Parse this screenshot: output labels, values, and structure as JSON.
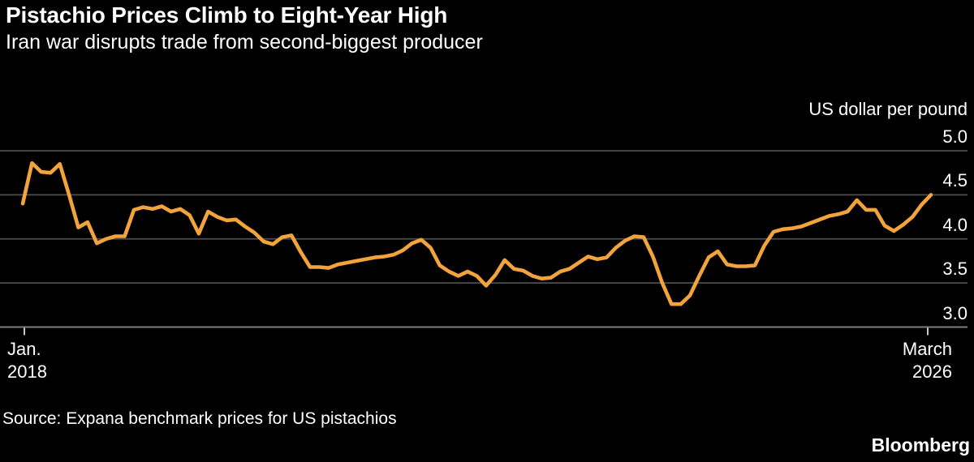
{
  "header": {
    "title": "Pistachio Prices Climb to Eight-Year High",
    "subtitle": "Iran war disrupts trade from second-biggest producer"
  },
  "footer": {
    "source": "Source: Expana benchmark prices for US pistachios",
    "brand": "Bloomberg"
  },
  "chart_data": {
    "type": "line",
    "title": "Pistachio Prices Climb to Eight-Year High",
    "subtitle": "Iran war disrupts trade from second-biggest producer",
    "series_name": "US pistachio benchmark price",
    "unit_label": "US dollar per pound",
    "x_start_label": [
      "Jan.",
      "2018"
    ],
    "x_end_label": [
      "March",
      "2026"
    ],
    "x_range": [
      "2018-01",
      "2026-03"
    ],
    "x_frequency": "monthly",
    "ylim": [
      3.0,
      5.0
    ],
    "y_ticks": [
      5.0,
      4.5,
      4.0,
      3.5,
      3.0
    ],
    "grid": "horizontal",
    "legend": "none",
    "values": [
      4.4,
      4.86,
      4.76,
      4.75,
      4.85,
      4.5,
      4.13,
      4.19,
      3.95,
      4.0,
      4.03,
      4.03,
      4.33,
      4.36,
      4.34,
      4.37,
      4.31,
      4.34,
      4.27,
      4.06,
      4.31,
      4.25,
      4.21,
      4.22,
      4.14,
      4.07,
      3.97,
      3.94,
      4.02,
      4.04,
      3.85,
      3.68,
      3.68,
      3.67,
      3.71,
      3.73,
      3.75,
      3.77,
      3.79,
      3.8,
      3.82,
      3.87,
      3.95,
      3.99,
      3.9,
      3.7,
      3.63,
      3.58,
      3.63,
      3.58,
      3.47,
      3.59,
      3.76,
      3.66,
      3.64,
      3.58,
      3.55,
      3.56,
      3.63,
      3.66,
      3.73,
      3.8,
      3.77,
      3.79,
      3.9,
      3.98,
      4.03,
      4.02,
      3.8,
      3.5,
      3.26,
      3.26,
      3.36,
      3.58,
      3.79,
      3.86,
      3.71,
      3.69,
      3.69,
      3.7,
      3.92,
      4.08,
      4.11,
      4.12,
      4.14,
      4.18,
      4.22,
      4.26,
      4.28,
      4.31,
      4.44,
      4.33,
      4.33,
      4.15,
      4.09,
      4.16,
      4.25,
      4.39,
      4.5
    ],
    "colors": {
      "line": "#F2A33C",
      "background": "#000000",
      "text": "#FFFFFF",
      "gridline": "#4D4D4D",
      "baseline": "#7D7D7D",
      "tick": "#C8C8C8"
    }
  }
}
